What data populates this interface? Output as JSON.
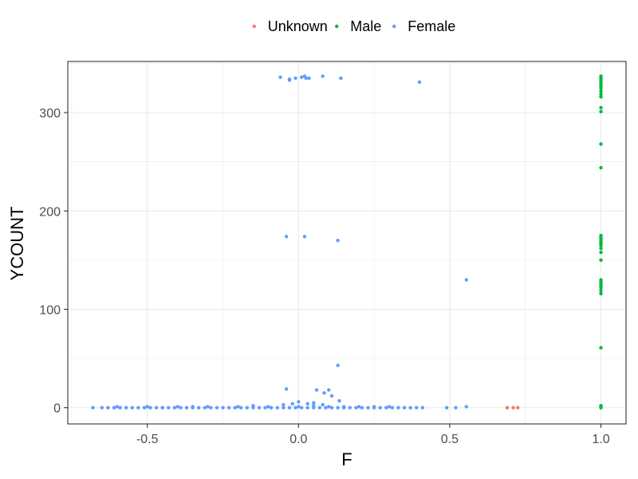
{
  "chart_data": {
    "type": "scatter",
    "title": "",
    "xlabel": "F",
    "ylabel": "YCOUNT",
    "xlim": [
      -0.763,
      1.083
    ],
    "ylim": [
      -16.5,
      352
    ],
    "x_ticks": [
      -0.5,
      0.0,
      0.5,
      1.0
    ],
    "x_tick_labels": [
      "-0.5",
      "0.0",
      "0.5",
      "1.0"
    ],
    "y_ticks": [
      0,
      100,
      200,
      300
    ],
    "y_tick_labels": [
      "0",
      "100",
      "200",
      "300"
    ],
    "grid": true,
    "legend_position": "top",
    "series": [
      {
        "name": "Unknown",
        "color": "#F8766D",
        "points": [
          [
            0.69,
            0
          ],
          [
            0.71,
            0
          ],
          [
            0.725,
            0
          ]
        ]
      },
      {
        "name": "Male",
        "color": "#00BA38",
        "points": [
          [
            1.0,
            337
          ],
          [
            1.0,
            335
          ],
          [
            1.0,
            333
          ],
          [
            1.0,
            331
          ],
          [
            1.0,
            329
          ],
          [
            1.0,
            327
          ],
          [
            1.0,
            325
          ],
          [
            1.0,
            322
          ],
          [
            1.0,
            319
          ],
          [
            1.0,
            316
          ],
          [
            1.0,
            305
          ],
          [
            1.0,
            301
          ],
          [
            1.0,
            268
          ],
          [
            1.0,
            244
          ],
          [
            1.0,
            175
          ],
          [
            1.0,
            173
          ],
          [
            1.0,
            171
          ],
          [
            1.0,
            169
          ],
          [
            1.0,
            167
          ],
          [
            1.0,
            165
          ],
          [
            1.0,
            162
          ],
          [
            1.0,
            158
          ],
          [
            1.0,
            150
          ],
          [
            1.0,
            130
          ],
          [
            1.0,
            128
          ],
          [
            1.0,
            126
          ],
          [
            1.0,
            124
          ],
          [
            1.0,
            122
          ],
          [
            1.0,
            119
          ],
          [
            1.0,
            116
          ],
          [
            1.0,
            61
          ],
          [
            1.0,
            2
          ],
          [
            1.0,
            1
          ],
          [
            1.0,
            0
          ]
        ]
      },
      {
        "name": "Female",
        "color": "#619CFF",
        "points": [
          [
            -0.06,
            336
          ],
          [
            -0.03,
            334
          ],
          [
            -0.03,
            333
          ],
          [
            -0.01,
            335
          ],
          [
            0.01,
            336
          ],
          [
            0.02,
            337
          ],
          [
            0.025,
            335
          ],
          [
            0.035,
            335
          ],
          [
            0.08,
            337
          ],
          [
            0.14,
            335
          ],
          [
            0.4,
            331
          ],
          [
            -0.04,
            174
          ],
          [
            0.02,
            174
          ],
          [
            0.13,
            170
          ],
          [
            0.555,
            130
          ],
          [
            0.13,
            43
          ],
          [
            -0.04,
            19
          ],
          [
            0.06,
            18
          ],
          [
            0.085,
            15
          ],
          [
            0.1,
            18
          ],
          [
            0.11,
            12
          ],
          [
            0.135,
            7
          ],
          [
            -0.05,
            3
          ],
          [
            -0.02,
            4
          ],
          [
            0.0,
            6
          ],
          [
            0.03,
            4
          ],
          [
            0.05,
            5
          ],
          [
            0.08,
            3
          ],
          [
            -0.68,
            0
          ],
          [
            -0.65,
            0
          ],
          [
            -0.63,
            0
          ],
          [
            -0.61,
            0
          ],
          [
            -0.59,
            0
          ],
          [
            -0.57,
            0
          ],
          [
            -0.55,
            0
          ],
          [
            -0.53,
            0
          ],
          [
            -0.51,
            0
          ],
          [
            -0.49,
            0
          ],
          [
            -0.47,
            0
          ],
          [
            -0.45,
            0
          ],
          [
            -0.43,
            0
          ],
          [
            -0.41,
            0
          ],
          [
            -0.39,
            0
          ],
          [
            -0.37,
            0
          ],
          [
            -0.35,
            0
          ],
          [
            -0.33,
            0
          ],
          [
            -0.31,
            0
          ],
          [
            -0.29,
            0
          ],
          [
            -0.27,
            0
          ],
          [
            -0.25,
            0
          ],
          [
            -0.23,
            0
          ],
          [
            -0.21,
            0
          ],
          [
            -0.19,
            0
          ],
          [
            -0.17,
            0
          ],
          [
            -0.15,
            0
          ],
          [
            -0.13,
            0
          ],
          [
            -0.11,
            0
          ],
          [
            -0.09,
            0
          ],
          [
            -0.07,
            0
          ],
          [
            -0.05,
            0
          ],
          [
            -0.03,
            0
          ],
          [
            -0.01,
            0
          ],
          [
            0.01,
            0
          ],
          [
            0.03,
            0
          ],
          [
            0.05,
            0
          ],
          [
            0.07,
            0
          ],
          [
            0.09,
            0
          ],
          [
            0.11,
            0
          ],
          [
            0.13,
            0
          ],
          [
            0.15,
            0
          ],
          [
            0.17,
            0
          ],
          [
            0.19,
            0
          ],
          [
            0.21,
            0
          ],
          [
            0.23,
            0
          ],
          [
            0.25,
            0
          ],
          [
            0.27,
            0
          ],
          [
            0.29,
            0
          ],
          [
            0.31,
            0
          ],
          [
            0.33,
            0
          ],
          [
            0.35,
            0
          ],
          [
            0.37,
            0
          ],
          [
            0.39,
            0
          ],
          [
            0.41,
            0
          ],
          [
            0.49,
            0
          ],
          [
            0.52,
            0
          ],
          [
            0.555,
            1
          ],
          [
            -0.6,
            1
          ],
          [
            -0.5,
            1
          ],
          [
            -0.4,
            1
          ],
          [
            -0.3,
            1
          ],
          [
            -0.2,
            1
          ],
          [
            -0.1,
            1
          ],
          [
            0.0,
            1
          ],
          [
            0.1,
            1
          ],
          [
            0.2,
            1
          ],
          [
            0.3,
            1
          ],
          [
            -0.45,
            0
          ],
          [
            -0.35,
            1
          ],
          [
            -0.15,
            2
          ],
          [
            0.05,
            2
          ],
          [
            0.15,
            1
          ],
          [
            0.25,
            1
          ]
        ]
      }
    ]
  }
}
